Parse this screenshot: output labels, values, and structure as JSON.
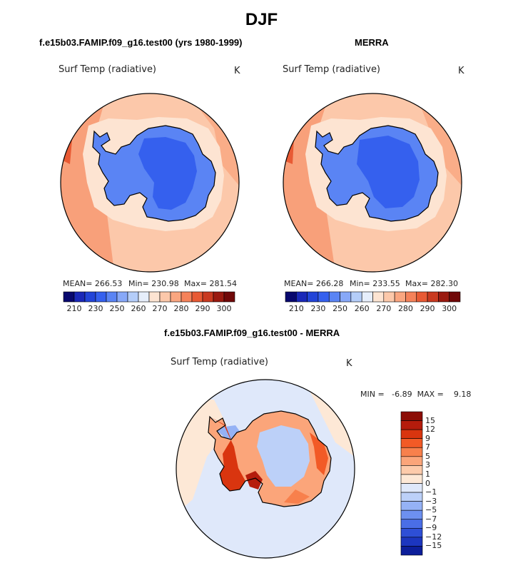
{
  "figure_title": "DJF",
  "chart_data": [
    {
      "type": "heatmap",
      "title": "f.e15b03.FAMIP.f09_g16.test00 (yrs 1980-1999)",
      "field_label": "Surf Temp (radiative)",
      "units": "K",
      "stats": {
        "mean": "MEAN= 266.53",
        "min": "Min= 230.98",
        "max": "Max= 281.54"
      },
      "levels": [
        210,
        220,
        230,
        240,
        250,
        255,
        260,
        265,
        270,
        275,
        280,
        285,
        290,
        295,
        300
      ],
      "tick_labels": [
        "210",
        "230",
        "250",
        "260",
        "270",
        "280",
        "290",
        "300"
      ]
    },
    {
      "type": "heatmap",
      "title": "MERRA",
      "field_label": "Surf Temp (radiative)",
      "units": "K",
      "stats": {
        "mean": "MEAN= 266.28",
        "min": "Min= 233.55",
        "max": "Max= 282.30"
      },
      "levels": [
        210,
        220,
        230,
        240,
        250,
        255,
        260,
        265,
        270,
        275,
        280,
        285,
        290,
        295,
        300
      ],
      "tick_labels": [
        "210",
        "230",
        "250",
        "260",
        "270",
        "280",
        "290",
        "300"
      ]
    },
    {
      "type": "heatmap",
      "title": "f.e15b03.FAMIP.f09_g16.test00 - MERRA",
      "field_label": "Surf Temp (radiative)",
      "units": "K",
      "stats": {
        "minmax": "MIN =   -6.89  MAX =    9.18"
      },
      "levels": [
        15,
        12,
        9,
        7,
        5,
        3,
        1,
        0,
        -1,
        -3,
        -5,
        -7,
        -9,
        -12,
        -15
      ],
      "tick_labels": [
        "15",
        "12",
        "9",
        "7",
        "5",
        "3",
        "1",
        "0",
        "−1",
        "−3",
        "−5",
        "−7",
        "−9",
        "−12",
        "−15"
      ]
    }
  ],
  "colors": {
    "temp_scale": [
      "#08086e",
      "#1a28b8",
      "#2244d8",
      "#3560ee",
      "#5a84f4",
      "#87a8f8",
      "#b4cdf9",
      "#e6eefb",
      "#fde4d2",
      "#fcc8aa",
      "#faa680",
      "#f5825a",
      "#e85a34",
      "#c93a20",
      "#9a1a10",
      "#700808"
    ],
    "diff_scale": [
      "#8c0d06",
      "#b51c0c",
      "#d9350f",
      "#f25a26",
      "#f8804c",
      "#fba57a",
      "#fdcbab",
      "#fde8d6",
      "#dfe8fa",
      "#bcd0f8",
      "#95b2f5",
      "#6d90f0",
      "#4a6ee6",
      "#2e4fd6",
      "#1c36bf",
      "#0c1e9a"
    ]
  }
}
